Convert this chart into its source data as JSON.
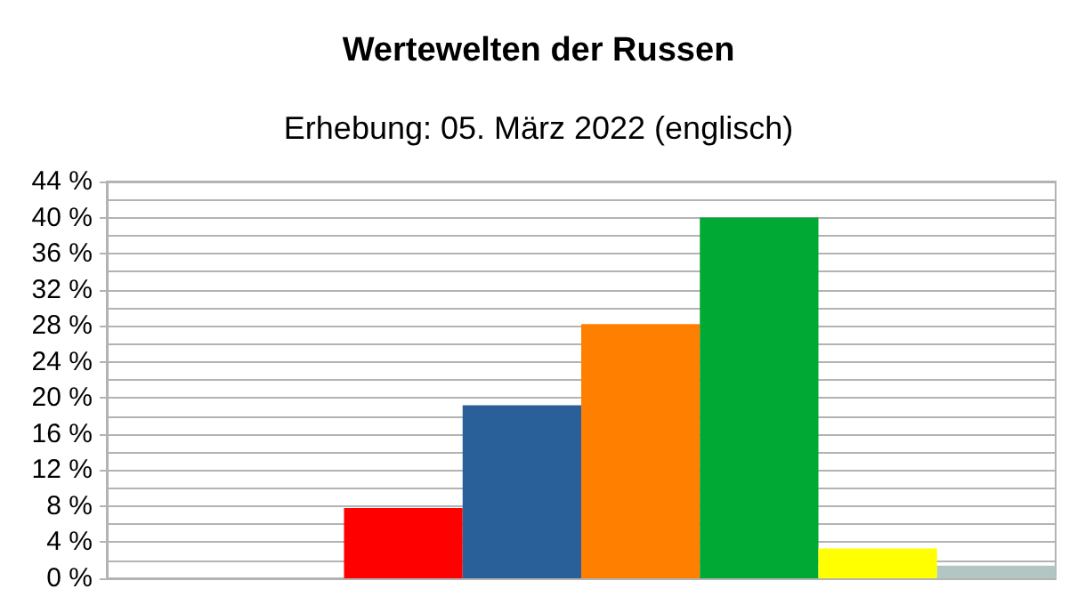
{
  "chart_data": {
    "type": "bar",
    "title": "Wertewelten der Russen",
    "subtitle": "Erhebung: 05. März 2022 (englisch)",
    "categories": [
      null,
      null,
      null,
      null,
      null,
      null,
      null,
      null
    ],
    "values": [
      null,
      null,
      7.8,
      19.2,
      28.2,
      40.0,
      3.3,
      1.4
    ],
    "colors": [
      "#ff0000",
      "#ff0000",
      "#ff0000",
      "#2a6099",
      "#ff8000",
      "#00a933",
      "#ffff00",
      "#b3c6c3"
    ],
    "ylim": [
      0,
      44
    ],
    "yticks": [
      {
        "value": 0,
        "label": "0 %"
      },
      {
        "value": 4,
        "label": "4 %"
      },
      {
        "value": 8,
        "label": "8 %"
      },
      {
        "value": 12,
        "label": "12 %"
      },
      {
        "value": 16,
        "label": "16 %"
      },
      {
        "value": 20,
        "label": "20 %"
      },
      {
        "value": 24,
        "label": "24 %"
      },
      {
        "value": 28,
        "label": "28 %"
      },
      {
        "value": 32,
        "label": "32 %"
      },
      {
        "value": 36,
        "label": "36 %"
      },
      {
        "value": 40,
        "label": "40 %"
      },
      {
        "value": 44,
        "label": "44 %"
      }
    ],
    "grid": true
  }
}
